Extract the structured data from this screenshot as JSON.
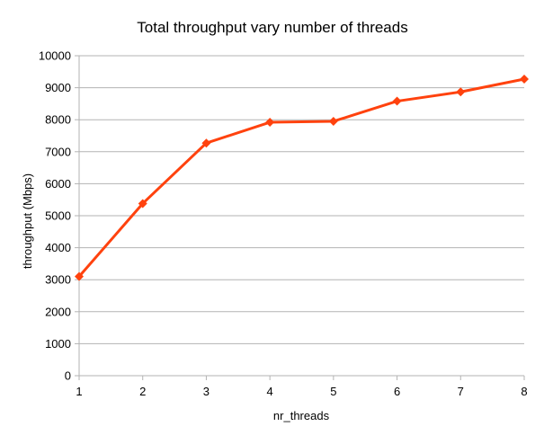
{
  "chart_data": {
    "type": "line",
    "title": "Total throughput vary number of threads",
    "xlabel": "nr_threads",
    "ylabel": "throughput (Mbps)",
    "x": [
      1,
      2,
      3,
      4,
      5,
      6,
      7,
      8
    ],
    "series": [
      {
        "values": [
          3100,
          5380,
          7270,
          7920,
          7950,
          8580,
          8870,
          9270
        ]
      }
    ],
    "ylim": [
      0,
      10000
    ],
    "xlim": [
      1,
      8
    ],
    "y_ticks": [
      0,
      1000,
      2000,
      3000,
      4000,
      5000,
      6000,
      7000,
      8000,
      9000,
      10000
    ],
    "x_ticks": [
      1,
      2,
      3,
      4,
      5,
      6,
      7,
      8
    ],
    "grid": "horizontal",
    "legend": "none",
    "colors": {
      "series": "#ff420e",
      "grid": "#b3b3b3",
      "axis": "#b3b3b3"
    }
  }
}
